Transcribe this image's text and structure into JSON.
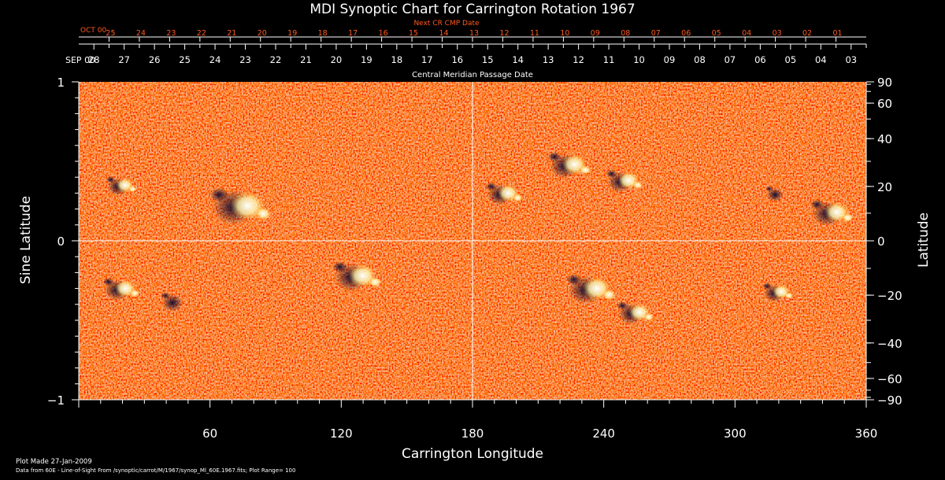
{
  "colors": {
    "background": "#000000",
    "axis": "#ffffff",
    "accent": "#ff5a1f",
    "map_base": "#ee3a0a",
    "map_positive": "#ffffff",
    "map_negative": "#0b0630"
  },
  "chart_data": {
    "type": "heatmap",
    "title": "MDI Synoptic Chart for Carrington Rotation 1967",
    "xlabel": "Carrington Longitude",
    "ylabel_left": "Sine Latitude",
    "ylabel_right": "Latitude",
    "xlim": [
      0,
      360
    ],
    "ylim": [
      -1,
      1
    ],
    "x_ticks": [
      60,
      120,
      180,
      240,
      300,
      360
    ],
    "y_ticks_left": [
      {
        "value": 1,
        "label": "1"
      },
      {
        "value": 0,
        "label": "0"
      },
      {
        "value": -1,
        "label": "−1"
      }
    ],
    "y_ticks_right": [
      90,
      60,
      40,
      20,
      0,
      -20,
      -40,
      -60,
      -90
    ],
    "y_tick_labels_right": [
      "90",
      "60",
      "40",
      "20",
      "0",
      "−20",
      "−40",
      "−60",
      "−90"
    ],
    "grid_lines": {
      "longitude": 180,
      "sine_latitude": 0
    },
    "top_axis": {
      "label": "Central Meridian Passage Date",
      "start_label": "SEP 00",
      "dates": [
        "28",
        "27",
        "26",
        "25",
        "24",
        "23",
        "22",
        "21",
        "20",
        "19",
        "18",
        "17",
        "16",
        "15",
        "14",
        "13",
        "12",
        "11",
        "10",
        "09",
        "08",
        "07",
        "06",
        "05",
        "04",
        "03"
      ],
      "date_longitudes": [
        13.5,
        40.5,
        67.5,
        94.5,
        121.5,
        148.5,
        175.5,
        202.5,
        229.5,
        256.5,
        283.5,
        310.5,
        337.5,
        364.5,
        391.5,
        418.5,
        445.5,
        472.5,
        499.5,
        526.5,
        553.5,
        580.5,
        607.5,
        634.5,
        661.5,
        688.5
      ]
    },
    "next_cr_axis": {
      "label": "Next CR CMP Date",
      "start_label": "OCT 00",
      "dates": [
        "25",
        "24",
        "23",
        "22",
        "21",
        "20",
        "19",
        "18",
        "17",
        "16",
        "15",
        "14",
        "13",
        "12",
        "11",
        "10",
        "09",
        "08",
        "07",
        "06",
        "05",
        "04",
        "03",
        "02",
        "01"
      ],
      "date_longitudes": [
        27,
        54,
        81,
        108,
        135,
        162,
        189,
        216,
        243,
        270,
        297,
        324,
        351,
        378,
        405,
        432,
        459,
        486,
        513,
        540,
        567,
        594,
        621,
        648,
        675
      ]
    },
    "active_regions": [
      {
        "lon": 75,
        "sinlat": 0.22,
        "polarity": "mixed",
        "strength": 1.0
      },
      {
        "lon": 20,
        "sinlat": 0.35,
        "polarity": "mixed",
        "strength": 0.5
      },
      {
        "lon": 128,
        "sinlat": -0.22,
        "polarity": "mixed",
        "strength": 0.8
      },
      {
        "lon": 20,
        "sinlat": -0.3,
        "polarity": "mixed",
        "strength": 0.6
      },
      {
        "lon": 45,
        "sinlat": -0.38,
        "polarity": "negative",
        "strength": 0.5
      },
      {
        "lon": 195,
        "sinlat": 0.3,
        "polarity": "mixed",
        "strength": 0.6
      },
      {
        "lon": 225,
        "sinlat": 0.48,
        "polarity": "mixed",
        "strength": 0.7
      },
      {
        "lon": 250,
        "sinlat": 0.38,
        "polarity": "mixed",
        "strength": 0.6
      },
      {
        "lon": 235,
        "sinlat": -0.3,
        "polarity": "mixed",
        "strength": 0.8
      },
      {
        "lon": 255,
        "sinlat": -0.45,
        "polarity": "mixed",
        "strength": 0.6
      },
      {
        "lon": 320,
        "sinlat": -0.32,
        "polarity": "mixed",
        "strength": 0.5
      },
      {
        "lon": 345,
        "sinlat": 0.18,
        "polarity": "mixed",
        "strength": 0.7
      },
      {
        "lon": 320,
        "sinlat": 0.3,
        "polarity": "negative",
        "strength": 0.4
      }
    ]
  },
  "footer": {
    "plot_made": "Plot Made 27-Jan-2009",
    "data_source": "Data from 60E - Line-of-Sight From /synoptic/carrot/M/1967/synop_Ml_60E.1967.fits; Plot Range= 100"
  }
}
